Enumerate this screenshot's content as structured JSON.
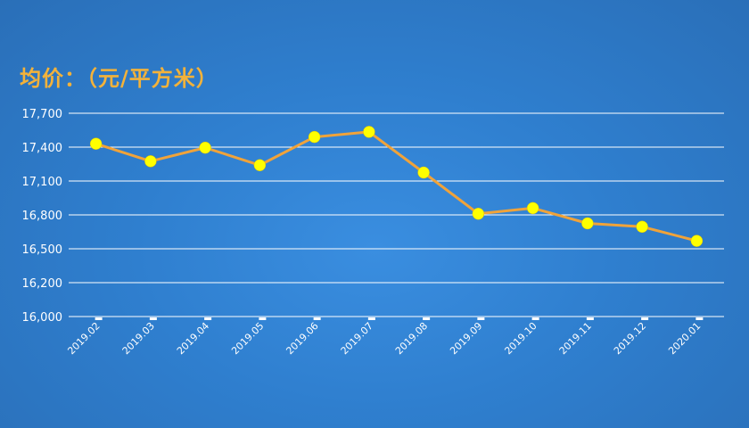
{
  "chart_data": {
    "type": "line",
    "title": "均价：（元/平方米）",
    "categories": [
      "2019.02",
      "2019.03",
      "2019.04",
      "2019.05",
      "2019.06",
      "2019.07",
      "2019.08",
      "2019.09",
      "2019.10",
      "2019.11",
      "2019.12",
      "2020.01"
    ],
    "series": [
      {
        "values": [
          17430,
          17275,
          17395,
          17240,
          17490,
          17535,
          17175,
          16810,
          16860,
          16725,
          16695,
          16570
        ]
      }
    ],
    "yticks": [
      "16,000",
      "16,200",
      "16,500",
      "16,800",
      "17,100",
      "17,400",
      "17,700"
    ],
    "ytick_values": [
      16000,
      16200,
      16500,
      16800,
      17100,
      17400,
      17700
    ],
    "ylim": [
      16000,
      17700
    ],
    "grid": true,
    "colors": {
      "line": "#f0a33a",
      "marker": "#ffff00",
      "title": "#f3b23a",
      "grid": "#ffffff"
    }
  }
}
